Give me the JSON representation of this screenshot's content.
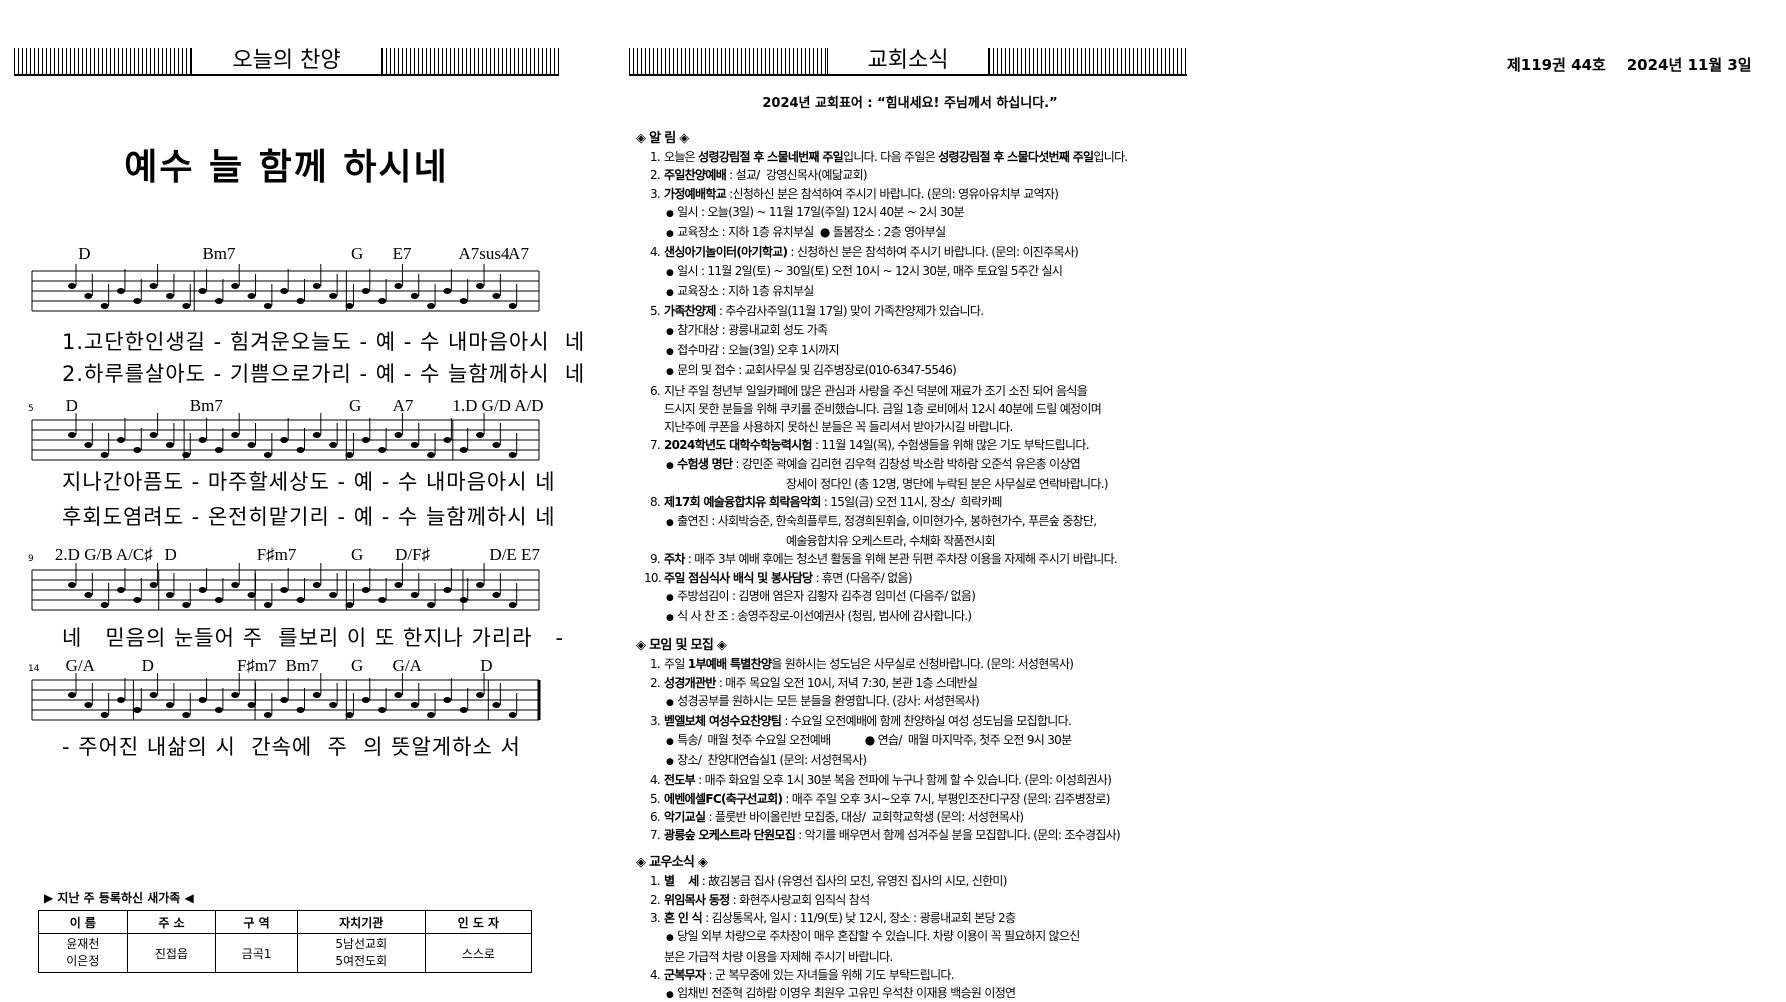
{
  "issue": {
    "volume": "제119권 44호",
    "date": "2024년 11월 3일"
  },
  "hymn": {
    "header": "오늘의 찬양",
    "title": "예수 늘 함께 하시네",
    "systems": [
      {
        "chords": [
          "D",
          "Bm7",
          "G",
          "E7",
          "A7sus4",
          "A7"
        ],
        "lyrics": [
          "1.고단한인생길 - 힘겨운오늘도 - 예 - 수 내마음아시  네",
          "2.하루를살아도 - 기쁨으로가리 - 예 - 수 늘함께하시  네"
        ]
      },
      {
        "measure": "5",
        "chords": [
          "D",
          "Bm7",
          "G",
          "A7",
          "1.D G/D A/D"
        ],
        "lyrics": [
          "지나간아픔도 - 마주할세상도 - 예 - 수 내마음아시 네",
          "후회도염려도 - 온전히맡기리 - 예 - 수 늘함께하시 네"
        ]
      },
      {
        "measure": "9",
        "chords": [
          "2.D G/B A/C♯",
          "D",
          "F♯m7",
          "G",
          "D/F♯",
          "D/E E7"
        ],
        "lyrics": [
          "네   믿음의 눈들어 주  를보리 이 또 한지나 가리라   -"
        ]
      },
      {
        "measure": "14",
        "chords": [
          "G/A",
          "D",
          "F♯m7",
          "Bm7",
          "G",
          "G/A",
          "D"
        ],
        "lyrics": [
          "- 주어진 내삶의 시  간속에  주  의 뜻알게하소 서"
        ]
      }
    ]
  },
  "newcomers": {
    "title": "▶ 지난 주 등록하신 새가족 ◀",
    "columns": [
      "이 름",
      "주 소",
      "구 역",
      "자치기관",
      "인 도 자"
    ],
    "rows": [
      [
        [
          "윤재천",
          "이은정"
        ],
        "진접읍",
        "금곡1",
        [
          "5남선교회",
          "5여전도회"
        ],
        "스스로"
      ]
    ]
  },
  "news": {
    "header": "교회소식",
    "motto": "2024년 교회표어 : “힘내세요! 주님께서 하십니다.”",
    "sections": [
      {
        "title": "◈ 알  림 ◈",
        "lines": [
          {
            "kind": "item",
            "num": "1.",
            "parts": [
              "오늘은 ",
              {
                "b": "성령강림절 후 스물네번째 주일"
              },
              "입니다. 다음 주일은 ",
              {
                "b": "성령강림절 후 스물다섯번째 주일"
              },
              "입니다."
            ]
          },
          {
            "kind": "item",
            "num": "2.",
            "parts": [
              {
                "b": "주일찬양예배"
              },
              " : 설교/  강영신목사(예닮교회)"
            ]
          },
          {
            "kind": "item",
            "num": "3.",
            "parts": [
              {
                "b": "가정예배학교"
              },
              " :신청하신 분은 참석하여 주시기 바랍니다. (문의: 영유아유치부 교역자)"
            ]
          },
          {
            "kind": "sub",
            "parts": [
              "일시 : 오늘(3일) ~ 11월 17일(주일) 12시 40분 ~ 2시 30분"
            ]
          },
          {
            "kind": "sub",
            "parts": [
              "교육장소 : 지하 1층 유치부실  ● 돌봄장소 : 2층 영아부실"
            ]
          },
          {
            "kind": "item",
            "num": "4.",
            "parts": [
              {
                "b": "샌싱아기놀이터(아기학교)"
              },
              " : 신청하신 분은 참석하여 주시기 바랍니다. (문의: 이진주목사)"
            ]
          },
          {
            "kind": "sub",
            "parts": [
              "일시 : 11월 2일(토) ~ 30일(토) 오전 10시 ~ 12시 30분, 매주 토요일 5주간 실시"
            ]
          },
          {
            "kind": "sub",
            "parts": [
              "교육장소 : 지하 1층 유치부실"
            ]
          },
          {
            "kind": "item",
            "num": "5.",
            "parts": [
              {
                "b": "가족찬양제"
              },
              " : 추수감사주일(11월 17일) 맞이 가족찬양제가 있습니다."
            ]
          },
          {
            "kind": "sub",
            "parts": [
              "참가대상 : 광릉내교회 성도 가족"
            ]
          },
          {
            "kind": "sub",
            "parts": [
              "접수마감 : 오늘(3일) 오후 1시까지"
            ]
          },
          {
            "kind": "sub",
            "parts": [
              "문의 및 접수 : 교회사무실 및 김주병장로(010-6347-5546)"
            ]
          },
          {
            "kind": "item",
            "num": "6.",
            "parts": [
              "지난 주일 청년부 일일카페에 많은 관심과 사랑을 주신 덕분에 재료가 조기 소진 되어 음식을"
            ]
          },
          {
            "kind": "cont",
            "parts": [
              "드시지 못한 분들을 위해 쿠키를 준비했습니다. 금일 1층 로비에서 12시 40분에 드릴 예정이며"
            ]
          },
          {
            "kind": "cont",
            "parts": [
              "지난주에 쿠폰을 사용하지 못하신 분들은 꼭 들리셔서 받아가시길 바랍니다."
            ]
          },
          {
            "kind": "item",
            "num": "7.",
            "parts": [
              {
                "b": "2024학년도 대학수학능력시험"
              },
              " : 11월 14일(목), 수험생들을 위해 많은 기도 부탁드립니다."
            ]
          },
          {
            "kind": "sub",
            "parts": [
              {
                "b": "수험생 명단"
              },
              " : 강민준 곽예슬 김리현 김우혁 김창성 박소람 박하람 오준석 유은총 이상엽"
            ]
          },
          {
            "kind": "cont2",
            "parts": [
              "장세이 정다인 (총 12명, 명단에 누락된 분은 사무실로 연락바랍니다.)"
            ]
          },
          {
            "kind": "item",
            "num": "8.",
            "parts": [
              {
                "b": "제17회 예술융합치유 희락음악회"
              },
              " : 15일(금) 오전 11시, 장소/  희락카페"
            ]
          },
          {
            "kind": "sub",
            "parts": [
              "출연진 : 사회박승준, 한숙희플루트, 정경희된휘슬, 이미현가수, 봉하현가수, 푸른숲 중창단,"
            ]
          },
          {
            "kind": "cont2",
            "parts": [
              "예술융합치유 오케스트라, 수채화 작품전시회"
            ]
          },
          {
            "kind": "item",
            "num": "9.",
            "parts": [
              {
                "b": "주차"
              },
              " : 매주 3부 예배 후에는 청소년 활동을 위해 본관 뒤편 주차장 이용을 자제해 주시기 바랍니다."
            ]
          },
          {
            "kind": "item",
            "num": "10.",
            "parts": [
              {
                "b": "주일 점심식사 배식 및 봉사담당"
              },
              " : 휴면 (다음주/ 없음)"
            ]
          },
          {
            "kind": "sub",
            "parts": [
              "주방섬김이 : 김명애 염은자 김황자 김추경 임미선 (다음주/ 없음)"
            ]
          },
          {
            "kind": "sub",
            "parts": [
              "식 사 찬 조 : 송영주장로-이선예권사 (청림, 범사에 감사합니다.)"
            ]
          }
        ]
      },
      {
        "title": "◈ 모임 및 모집 ◈",
        "lines": [
          {
            "kind": "item",
            "num": "1.",
            "parts": [
              "주일 ",
              {
                "b": "1부예배 특별찬양"
              },
              "을 원하시는 성도님은 사무실로 신청바랍니다. (문의: 서성현목사)"
            ]
          },
          {
            "kind": "item",
            "num": "2.",
            "parts": [
              {
                "b": "성경개관반"
              },
              " : 매주 목요일 오전 10시, 저녁 7:30, 본관 1층 스데반실"
            ]
          },
          {
            "kind": "sub",
            "parts": [
              "성경공부를 원하시는 모든 분들을 환영합니다. (강사: 서성현목사)"
            ]
          },
          {
            "kind": "item",
            "num": "3.",
            "parts": [
              {
                "b": "벧엘보체 여성수요찬양팀"
              },
              " : 수요일 오전예배에 함께 찬양하실 여성 성도님을 모집합니다."
            ]
          },
          {
            "kind": "sub",
            "parts": [
              "특송/  매월 첫주 수요일 오전예배           ● 연습/  매월 마지막주, 첫주 오전 9시 30분"
            ]
          },
          {
            "kind": "sub",
            "parts": [
              "장소/  찬양대연습실1 (문의: 서성현목사)"
            ]
          },
          {
            "kind": "item",
            "num": "4.",
            "parts": [
              {
                "b": "전도부"
              },
              " : 매주 화요일 오후 1시 30분 복음 전파에 누구나 함께 할 수 있습니다. (문의: 이성희권사)"
            ]
          },
          {
            "kind": "item",
            "num": "5.",
            "parts": [
              {
                "b": "에벤에셀FC(축구선교회)"
              },
              " : 매주 주일 오후 3시~오후 7시, 부평인조잔디구장 (문의: 김주병장로)"
            ]
          },
          {
            "kind": "item",
            "num": "6.",
            "parts": [
              {
                "b": "악기교실"
              },
              " : 플룻반 바이올린반 모집중, 대상/  교회학교학생 (문의: 서성현목사)"
            ]
          },
          {
            "kind": "item",
            "num": "7.",
            "parts": [
              {
                "b": "광릉숲 오케스트라 단원모집"
              },
              " : 악기를 배우면서 함께 섬겨주실 분을 모집합니다. (문의: 조수경집사)"
            ]
          }
        ]
      },
      {
        "title": "◈ 교우소식 ◈",
        "lines": [
          {
            "kind": "item",
            "num": "1.",
            "parts": [
              {
                "b": "별    세"
              },
              " : 故김봉금 집사 (유영선 집사의 모친, 유영진 집사의 시모, 신한미)"
            ]
          },
          {
            "kind": "item",
            "num": "2.",
            "parts": [
              {
                "b": "위임목사 동정"
              },
              " : 화현주사랑교회 임직식 참석"
            ]
          },
          {
            "kind": "item",
            "num": "3.",
            "parts": [
              {
                "b": "혼 인 식"
              },
              " : 김상통목사, 일시 : 11/9(토) 낮 12시, 장소 : 광릉내교회 본당 2층"
            ]
          },
          {
            "kind": "sub",
            "parts": [
              "당일 외부 차량으로 주차장이 매우 혼잡할 수 있습니다. 차량 이용이 꼭 필요하지 않으신"
            ]
          },
          {
            "kind": "cont",
            "parts": [
              "분은 가급적 차량 이용을 자제해 주시기 바랍니다."
            ]
          },
          {
            "kind": "item",
            "num": "4.",
            "parts": [
              {
                "b": "군복무자"
              },
              " : 군 복무중에 있는 자녀들을 위해 기도 부탁드립니다."
            ]
          },
          {
            "kind": "sub",
            "parts": [
              "임채빈 전준혁 김하람 이영우 최원우 고유민 우석찬 이재용 백승원 이정연"
            ]
          }
        ]
      }
    ]
  }
}
